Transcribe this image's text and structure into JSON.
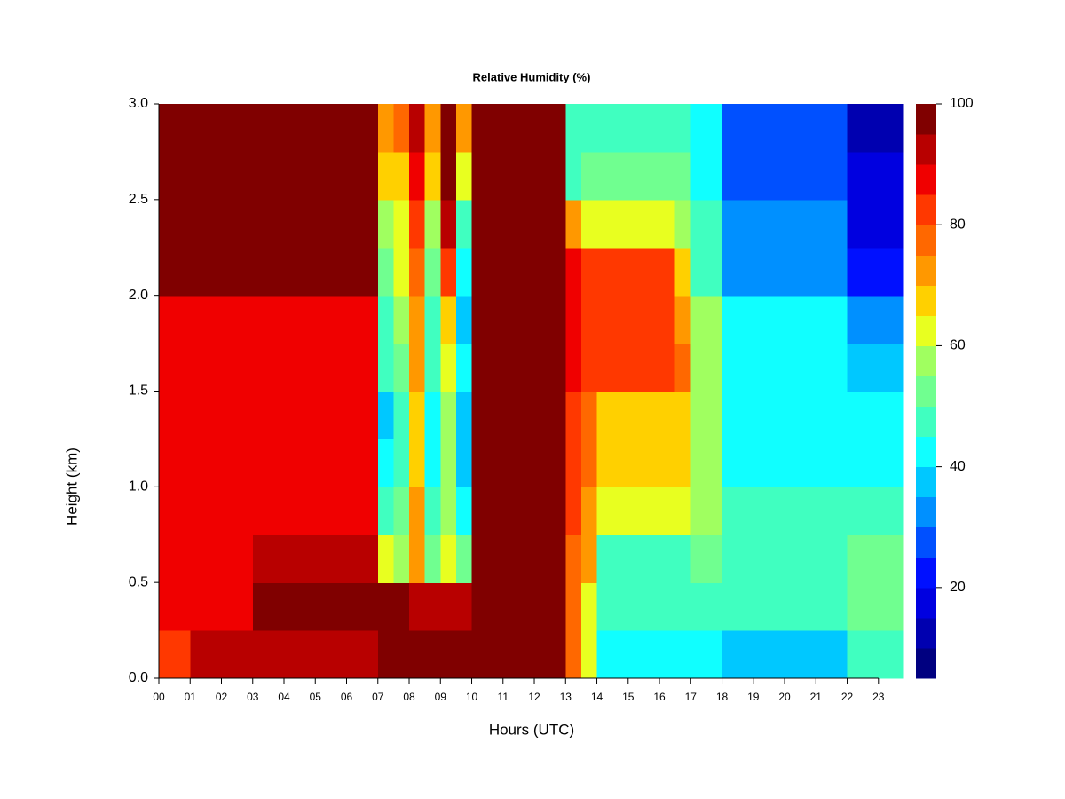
{
  "chart_data": {
    "type": "heatmap",
    "title": "Relative Humidity (%)",
    "x_label": "Hours (UTC)",
    "y_label": "Height (km)",
    "xlim": [
      0,
      23.8
    ],
    "ylim": [
      0,
      3
    ],
    "zlim": [
      5,
      100
    ],
    "xticks": [
      {
        "value": 0,
        "label": "00"
      },
      {
        "value": 1,
        "label": "01"
      },
      {
        "value": 2,
        "label": "02"
      },
      {
        "value": 3,
        "label": "03"
      },
      {
        "value": 4,
        "label": "04"
      },
      {
        "value": 5,
        "label": "05"
      },
      {
        "value": 6,
        "label": "06"
      },
      {
        "value": 7,
        "label": "07"
      },
      {
        "value": 8,
        "label": "08"
      },
      {
        "value": 9,
        "label": "09"
      },
      {
        "value": 10,
        "label": "10"
      },
      {
        "value": 11,
        "label": "11"
      },
      {
        "value": 12,
        "label": "12"
      },
      {
        "value": 13,
        "label": "13"
      },
      {
        "value": 14,
        "label": "14"
      },
      {
        "value": 15,
        "label": "15"
      },
      {
        "value": 16,
        "label": "16"
      },
      {
        "value": 17,
        "label": "17"
      },
      {
        "value": 18,
        "label": "18"
      },
      {
        "value": 19,
        "label": "19"
      },
      {
        "value": 20,
        "label": "20"
      },
      {
        "value": 21,
        "label": "21"
      },
      {
        "value": 22,
        "label": "22"
      },
      {
        "value": 23,
        "label": "23"
      }
    ],
    "yticks": [
      {
        "value": 0,
        "label": "0.0"
      },
      0.5,
      {
        "value": 1,
        "label": "1.0"
      },
      1.5,
      {
        "value": 2,
        "label": "2.0"
      },
      2.5,
      {
        "value": 3,
        "label": "3.0"
      }
    ],
    "zticks": [
      20,
      40,
      60,
      80,
      100
    ],
    "levels": [
      5,
      10,
      15,
      20,
      25,
      30,
      35,
      40,
      45,
      50,
      55,
      60,
      65,
      70,
      75,
      80,
      85,
      90,
      95,
      100
    ],
    "colors": [
      "#000080",
      "#0000b0",
      "#0000e0",
      "#0010ff",
      "#0050ff",
      "#0090ff",
      "#00c8ff",
      "#10ffff",
      "#40ffc0",
      "#70ff90",
      "#a0ff60",
      "#e8ff20",
      "#ffd000",
      "#ff9800",
      "#ff6800",
      "#ff3800",
      "#f00000",
      "#b80000",
      "#800000"
    ],
    "x": [
      0,
      0.5,
      1,
      1.5,
      2,
      2.5,
      3,
      3.5,
      4,
      4.5,
      5,
      5.5,
      6,
      6.5,
      7,
      7.5,
      8,
      8.5,
      9,
      9.5,
      10,
      10.5,
      11,
      11.5,
      12,
      12.5,
      13,
      13.5,
      14,
      14.5,
      15,
      15.5,
      16,
      16.5,
      17,
      17.5,
      18,
      18.5,
      19,
      19.5,
      20,
      20.5,
      21,
      21.5,
      22,
      22.5,
      23,
      23.5
    ],
    "y": [
      0,
      0.25,
      0.5,
      0.75,
      1,
      1.25,
      1.5,
      1.75,
      2,
      2.25,
      2.5,
      2.75
    ],
    "z": [
      [
        80,
        80,
        92,
        92,
        92,
        92,
        92,
        92,
        92,
        92,
        92,
        92,
        92,
        92,
        97,
        97,
        97,
        97,
        97,
        97,
        97,
        97,
        97,
        97,
        97,
        97,
        75,
        60,
        42,
        42,
        42,
        42,
        42,
        42,
        42,
        42,
        38,
        38,
        38,
        38,
        38,
        38,
        38,
        38,
        48,
        48,
        48,
        48
      ],
      [
        88,
        88,
        88,
        88,
        88,
        88,
        95,
        95,
        95,
        95,
        95,
        95,
        95,
        95,
        95,
        95,
        90,
        90,
        90,
        90,
        97,
        97,
        97,
        97,
        97,
        97,
        78,
        62,
        45,
        45,
        45,
        45,
        45,
        45,
        45,
        45,
        45,
        45,
        45,
        45,
        45,
        45,
        45,
        45,
        50,
        50,
        50,
        50
      ],
      [
        87,
        87,
        87,
        87,
        87,
        87,
        93,
        93,
        93,
        93,
        93,
        93,
        93,
        93,
        60,
        55,
        70,
        50,
        60,
        50,
        97,
        97,
        97,
        97,
        97,
        97,
        78,
        70,
        48,
        48,
        48,
        48,
        48,
        48,
        50,
        50,
        45,
        45,
        45,
        45,
        45,
        45,
        45,
        45,
        50,
        50,
        50,
        50
      ],
      [
        86,
        86,
        86,
        86,
        86,
        86,
        86,
        86,
        86,
        86,
        86,
        86,
        86,
        86,
        45,
        50,
        70,
        45,
        55,
        42,
        97,
        97,
        97,
        97,
        97,
        97,
        80,
        72,
        62,
        62,
        62,
        62,
        62,
        62,
        55,
        55,
        45,
        45,
        45,
        45,
        45,
        45,
        45,
        45,
        48,
        48,
        48,
        48
      ],
      [
        86,
        86,
        86,
        86,
        86,
        86,
        86,
        86,
        86,
        86,
        86,
        86,
        86,
        86,
        40,
        48,
        68,
        42,
        55,
        38,
        97,
        97,
        97,
        97,
        97,
        97,
        82,
        75,
        65,
        65,
        65,
        65,
        65,
        65,
        57,
        57,
        43,
        43,
        43,
        43,
        43,
        43,
        43,
        43,
        44,
        44,
        44,
        44
      ],
      [
        86,
        86,
        86,
        86,
        86,
        86,
        86,
        86,
        86,
        86,
        86,
        86,
        86,
        86,
        38,
        48,
        68,
        42,
        55,
        36,
        97,
        97,
        97,
        97,
        97,
        97,
        82,
        75,
        68,
        68,
        68,
        68,
        68,
        68,
        57,
        57,
        43,
        43,
        43,
        43,
        43,
        43,
        43,
        43,
        42,
        42,
        42,
        42
      ],
      [
        88,
        88,
        88,
        88,
        88,
        88,
        88,
        88,
        88,
        88,
        88,
        88,
        88,
        88,
        45,
        52,
        70,
        45,
        60,
        40,
        97,
        97,
        97,
        97,
        97,
        97,
        85,
        83,
        83,
        83,
        83,
        83,
        83,
        75,
        58,
        58,
        42,
        42,
        42,
        42,
        42,
        42,
        42,
        42,
        35,
        35,
        35,
        35
      ],
      [
        88,
        88,
        88,
        88,
        88,
        88,
        88,
        88,
        88,
        88,
        88,
        88,
        88,
        88,
        48,
        55,
        72,
        45,
        65,
        38,
        97,
        97,
        97,
        97,
        97,
        97,
        86,
        84,
        84,
        84,
        84,
        84,
        84,
        72,
        55,
        55,
        40,
        40,
        40,
        40,
        40,
        40,
        40,
        40,
        30,
        30,
        30,
        30
      ],
      [
        97,
        97,
        97,
        97,
        97,
        97,
        97,
        97,
        97,
        97,
        97,
        97,
        97,
        97,
        52,
        60,
        78,
        50,
        80,
        42,
        97,
        97,
        97,
        97,
        97,
        97,
        86,
        80,
        80,
        80,
        80,
        80,
        80,
        65,
        48,
        48,
        32,
        32,
        32,
        32,
        32,
        32,
        32,
        32,
        22,
        22,
        22,
        22
      ],
      [
        97,
        97,
        97,
        97,
        97,
        97,
        97,
        97,
        97,
        97,
        97,
        97,
        97,
        97,
        58,
        62,
        80,
        55,
        90,
        48,
        97,
        97,
        97,
        97,
        97,
        97,
        70,
        60,
        62,
        62,
        62,
        62,
        62,
        55,
        45,
        45,
        30,
        30,
        30,
        30,
        30,
        30,
        30,
        30,
        18,
        18,
        18,
        18
      ],
      [
        97,
        97,
        97,
        97,
        97,
        97,
        97,
        97,
        97,
        97,
        97,
        97,
        97,
        97,
        65,
        68,
        85,
        65,
        95,
        60,
        97,
        97,
        97,
        97,
        97,
        97,
        45,
        50,
        50,
        50,
        50,
        50,
        50,
        50,
        42,
        42,
        27,
        27,
        27,
        27,
        27,
        27,
        27,
        27,
        15,
        15,
        15,
        15
      ],
      [
        97,
        97,
        97,
        97,
        97,
        97,
        97,
        97,
        97,
        97,
        97,
        97,
        97,
        97,
        70,
        75,
        90,
        72,
        97,
        70,
        97,
        97,
        97,
        97,
        97,
        97,
        45,
        48,
        48,
        48,
        48,
        48,
        48,
        48,
        40,
        40,
        25,
        25,
        25,
        25,
        25,
        25,
        25,
        25,
        14,
        14,
        14,
        14
      ]
    ]
  }
}
